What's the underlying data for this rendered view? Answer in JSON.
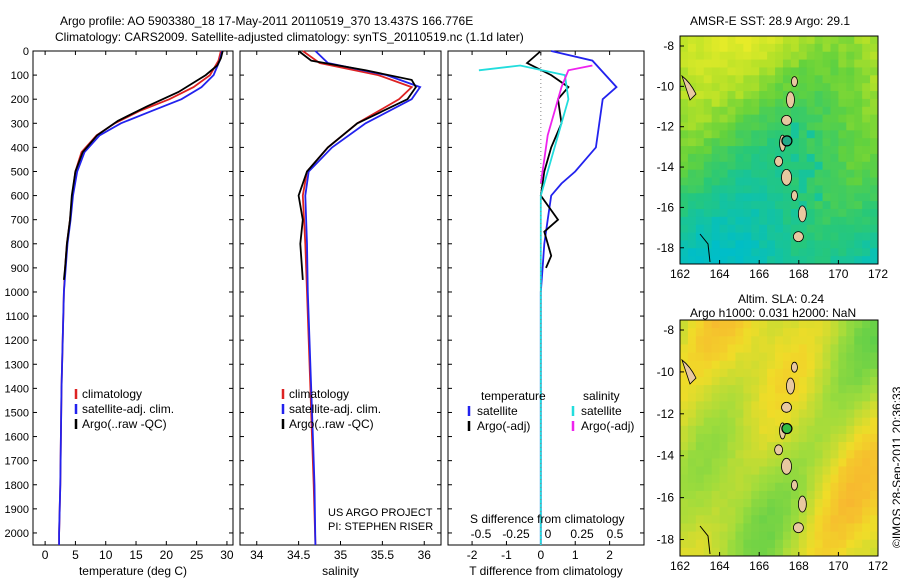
{
  "header": {
    "title_line1": "Argo profile: AO 5903380_18 17-May-2011 20110519_370 13.437S 166.776E",
    "title_line2": "Climatology: CARS2009. Satellite-adjusted climatology: synTS_20110519.nc (1.1d later)"
  },
  "colors": {
    "climatology": "#dd2222",
    "satellite": "#2222ee",
    "argo": "#000000",
    "satellite_s": "#22dddd",
    "argo_s": "#ee22ee"
  },
  "chart_data": [
    {
      "type": "line",
      "xlabel": "temperature (deg C)",
      "ylabel": "",
      "xlim": [
        -2,
        31
      ],
      "ylim": [
        2050,
        0
      ],
      "xticks": [
        0,
        5,
        10,
        15,
        20,
        25,
        30
      ],
      "yticks": [
        0,
        100,
        200,
        300,
        400,
        500,
        600,
        700,
        800,
        900,
        1000,
        1100,
        1200,
        1300,
        1400,
        1500,
        1600,
        1700,
        1800,
        1900,
        2000
      ],
      "series": [
        {
          "name": "climatology",
          "x": [
            29.0,
            28.6,
            27.2,
            24.5,
            20.5,
            15.5,
            11.5,
            8.5,
            6.0,
            5.0,
            4.5,
            4.1,
            3.6,
            3.3,
            3.1,
            2.9,
            2.7,
            2.6,
            2.5,
            2.4,
            2.3,
            2.3
          ],
          "y": [
            0,
            40,
            100,
            150,
            200,
            250,
            300,
            350,
            420,
            500,
            600,
            700,
            800,
            900,
            1000,
            1200,
            1400,
            1600,
            1800,
            1900,
            2000,
            2050
          ]
        },
        {
          "name": "satellite-adj. clim.",
          "x": [
            29.2,
            28.8,
            27.8,
            25.8,
            22.5,
            17.5,
            12.5,
            9.0,
            6.5,
            5.3,
            4.6,
            4.2,
            3.7,
            3.4,
            3.1,
            2.9,
            2.7,
            2.6,
            2.5,
            2.4,
            2.3,
            2.3
          ],
          "y": [
            0,
            40,
            100,
            150,
            200,
            250,
            300,
            350,
            420,
            500,
            600,
            700,
            800,
            900,
            1000,
            1200,
            1400,
            1600,
            1800,
            1900,
            2000,
            2050
          ]
        },
        {
          "name": "Argo(..raw -QC)",
          "x": [
            29.3,
            29.0,
            28.4,
            26.5,
            22.0,
            16.8,
            12.0,
            8.6,
            6.2,
            5.0,
            4.4,
            4.1,
            3.6,
            3.3,
            3.1
          ],
          "y": [
            0,
            30,
            60,
            100,
            170,
            230,
            290,
            350,
            420,
            500,
            600,
            700,
            800,
            900,
            950
          ]
        }
      ],
      "legend": "bottom-left"
    },
    {
      "type": "line",
      "xlabel": "salinity",
      "ylabel": "",
      "xlim": [
        33.8,
        36.2
      ],
      "ylim": [
        2050,
        0
      ],
      "xticks": [
        34,
        34.5,
        35,
        35.5,
        36
      ],
      "xticklabels": [
        "34",
        "34.5",
        "35",
        "35.5",
        "36"
      ],
      "series": [
        {
          "name": "climatology",
          "x": [
            34.55,
            34.75,
            35.45,
            35.85,
            35.7,
            35.2,
            34.85,
            34.6,
            34.55,
            34.58,
            34.6,
            34.62,
            34.64,
            34.66,
            34.68,
            34.7
          ],
          "y": [
            0,
            50,
            100,
            150,
            200,
            300,
            400,
            500,
            600,
            800,
            1000,
            1200,
            1400,
            1600,
            1800,
            2050
          ]
        },
        {
          "name": "satellite-adj. clim.",
          "x": [
            34.7,
            34.85,
            35.55,
            35.95,
            35.85,
            35.3,
            34.9,
            34.62,
            34.58,
            34.6,
            34.61,
            34.63,
            34.65,
            34.67,
            34.69,
            34.7
          ],
          "y": [
            0,
            50,
            100,
            150,
            200,
            300,
            400,
            500,
            600,
            800,
            1000,
            1200,
            1400,
            1600,
            1800,
            2050
          ]
        },
        {
          "name": "Argo(..raw -QC)",
          "x": [
            34.5,
            34.65,
            35.3,
            35.85,
            35.9,
            35.8,
            35.2,
            34.85,
            34.6,
            34.5,
            34.55,
            34.52,
            34.55
          ],
          "y": [
            0,
            40,
            80,
            120,
            150,
            200,
            300,
            400,
            500,
            600,
            700,
            800,
            950
          ]
        }
      ],
      "legend": "bottom-left",
      "annotation": [
        "US ARGO PROJECT",
        "PI: STEPHEN RISER"
      ]
    },
    {
      "type": "line",
      "xlabel": "T difference from climatology",
      "xlabel_top": "S difference from climatology",
      "xlim": [
        -2.7,
        3.0
      ],
      "ylim": [
        2050,
        0
      ],
      "xticks": [
        -2,
        -1,
        0,
        1,
        2
      ],
      "xticks_s": [
        "-0.5",
        "-0.25",
        "0",
        "0.25",
        "0.5"
      ],
      "series": [
        {
          "name": "temperature satellite",
          "x": [
            0.3,
            1.5,
            2.2,
            1.8,
            1.7,
            1.6,
            1.0,
            0.6,
            0.3,
            0.2,
            0.1,
            0.05,
            0.0,
            0.0,
            0.0,
            0.0
          ],
          "y": [
            0,
            40,
            150,
            200,
            300,
            400,
            500,
            550,
            600,
            700,
            800,
            900,
            1000,
            1400,
            1800,
            2050
          ]
        },
        {
          "name": "temperature Argo(-adj)",
          "x": [
            0.0,
            -0.4,
            0.3,
            0.8,
            0.5,
            0.6,
            0.3,
            0.1,
            0.0,
            0.5,
            0.1,
            0.3,
            0.15
          ],
          "y": [
            0,
            50,
            100,
            150,
            200,
            300,
            400,
            500,
            600,
            700,
            750,
            850,
            900
          ]
        },
        {
          "name": "salinity satellite",
          "x": [
            -1.8,
            -0.6,
            0.7,
            0.8,
            0.6,
            0.4,
            0.2,
            0.0,
            0.0,
            0.0,
            0.0
          ],
          "y": [
            80,
            60,
            100,
            200,
            300,
            400,
            500,
            600,
            800,
            1000,
            2050
          ]
        },
        {
          "name": "salinity Argo(-adj)",
          "x": [
            1.5,
            0.8,
            0.6,
            0.4,
            0.2,
            0.1,
            0.0
          ],
          "y": [
            60,
            80,
            150,
            250,
            350,
            450,
            550
          ]
        }
      ],
      "legend_headers": [
        "temperature",
        "salinity"
      ],
      "legend": "bottom"
    }
  ],
  "maps": [
    {
      "title": "AMSR-E SST: 28.9 Argo: 29.1",
      "title2": "",
      "xticks": [
        "162",
        "164",
        "166",
        "168",
        "170",
        "172"
      ],
      "yticks": [
        "-8",
        "-10",
        "-12",
        "-14",
        "-16",
        "-18"
      ]
    },
    {
      "title": "Altim. SLA: 0.24",
      "title2": "Argo h1000: 0.031 h2000: NaN",
      "xticks": [
        "162",
        "164",
        "166",
        "168",
        "170",
        "172"
      ],
      "yticks": [
        "-8",
        "-10",
        "-12",
        "-14",
        "-16",
        "-18"
      ]
    }
  ],
  "stamp": "©IMOS 28-Sep-2011 20:36:33"
}
